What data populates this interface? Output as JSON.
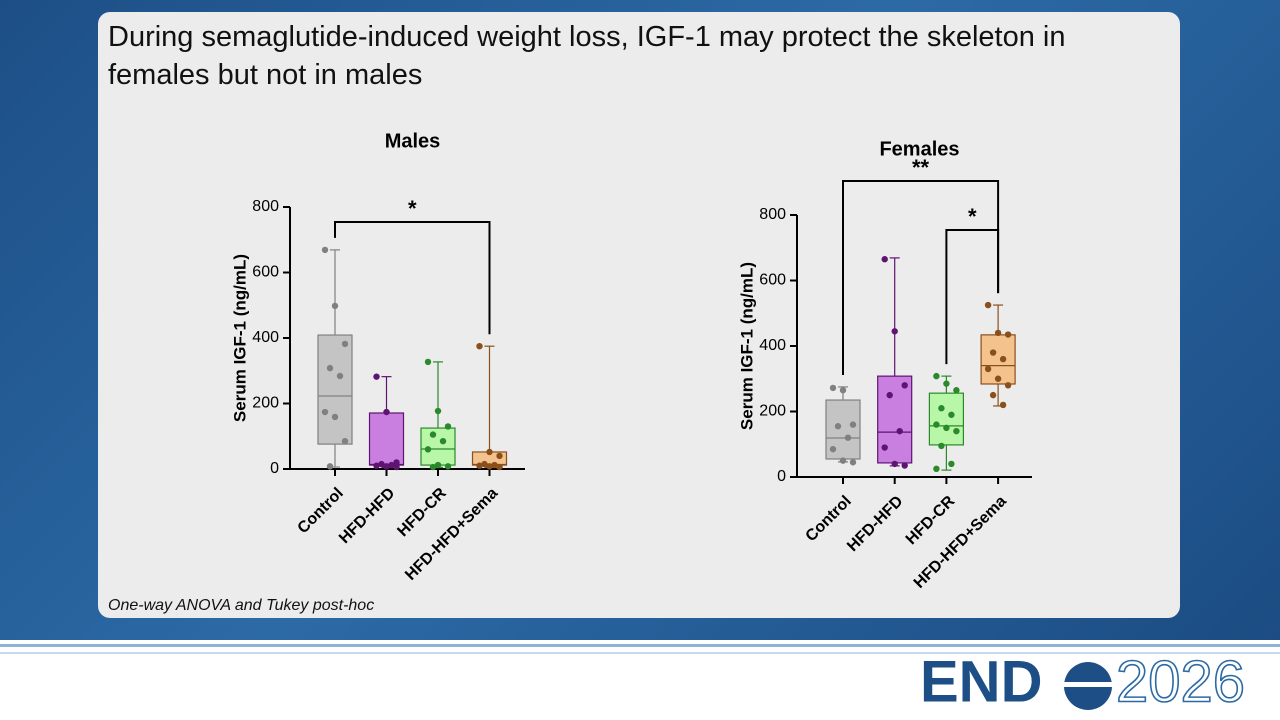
{
  "slide": {
    "title": "During semaglutide-induced weight loss, IGF-1 may protect the skeleton in females but not in males",
    "footnote": "One-way ANOVA and Tukey post-hoc"
  },
  "logo": {
    "left": "END",
    "right": "2026"
  },
  "chart_data": [
    {
      "type": "box",
      "title": "Males",
      "y_label": "Serum IGF-1 (ng/mL)",
      "categories": [
        "Control",
        "HFD-HFD",
        "HFD-CR",
        "HFD-HFD+Sema"
      ],
      "ylim": [
        0,
        800
      ],
      "yticks": [
        0,
        200,
        400,
        600,
        800
      ],
      "boxes": [
        {
          "color": "#c4c4c4",
          "stroke": "#808080",
          "min": 6,
          "q1": 76,
          "median": 223,
          "q3": 409,
          "max": 669,
          "points": [
            669,
            498,
            382,
            308,
            284,
            174,
            159,
            85,
            8
          ]
        },
        {
          "color": "#c97fe0",
          "stroke": "#5e1470",
          "min": 5,
          "q1": 12,
          "median": 14,
          "q3": 171,
          "max": 282,
          "points": [
            282,
            174,
            20,
            15,
            12,
            10,
            8,
            6
          ]
        },
        {
          "color": "#b8f6a8",
          "stroke": "#2a8a2a",
          "min": 5,
          "q1": 12,
          "median": 61,
          "q3": 125,
          "max": 327,
          "points": [
            327,
            177,
            130,
            105,
            85,
            60,
            12,
            8,
            6
          ]
        },
        {
          "color": "#f4c28c",
          "stroke": "#8a4f1c",
          "min": 5,
          "q1": 12,
          "median": 14,
          "q3": 52,
          "max": 375,
          "points": [
            375,
            52,
            40,
            15,
            12,
            10,
            8,
            6
          ]
        }
      ],
      "comparisons": [
        {
          "label": "*",
          "groups": [
            "Control",
            "HFD-HFD+Sema"
          ]
        }
      ]
    },
    {
      "type": "box",
      "title": "Females",
      "y_label": "Serum IGF-1 (ng/mL)",
      "categories": [
        "Control",
        "HFD-HFD",
        "HFD-CR",
        "HFD-HFD+Sema"
      ],
      "ylim": [
        0,
        800
      ],
      "yticks": [
        0,
        200,
        400,
        600,
        800
      ],
      "boxes": [
        {
          "color": "#c4c4c4",
          "stroke": "#808080",
          "min": 46,
          "q1": 55,
          "median": 119,
          "q3": 235,
          "max": 275,
          "points": [
            272,
            265,
            160,
            155,
            120,
            85,
            50,
            45
          ]
        },
        {
          "color": "#c97fe0",
          "stroke": "#5e1470",
          "min": 34,
          "q1": 43,
          "median": 137,
          "q3": 308,
          "max": 669,
          "points": [
            665,
            445,
            280,
            250,
            140,
            90,
            40,
            35
          ]
        },
        {
          "color": "#b8f6a8",
          "stroke": "#2a8a2a",
          "min": 21,
          "q1": 98,
          "median": 156,
          "q3": 256,
          "max": 308,
          "points": [
            308,
            285,
            265,
            210,
            190,
            160,
            150,
            140,
            95,
            40,
            25
          ]
        },
        {
          "color": "#f4c28c",
          "stroke": "#8a4f1c",
          "min": 217,
          "q1": 284,
          "median": 340,
          "q3": 434,
          "max": 525,
          "points": [
            525,
            440,
            435,
            380,
            360,
            330,
            300,
            280,
            250,
            220
          ]
        }
      ],
      "comparisons": [
        {
          "label": "**",
          "groups": [
            "Control",
            "HFD-HFD+Sema"
          ]
        },
        {
          "label": "*",
          "groups": [
            "HFD-CR",
            "HFD-HFD+Sema"
          ]
        }
      ]
    }
  ]
}
